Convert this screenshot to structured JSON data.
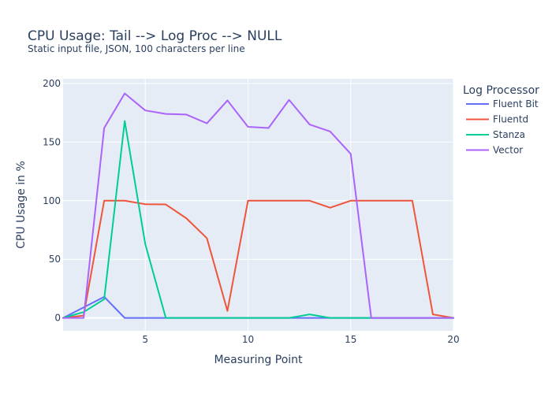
{
  "chart_data": {
    "type": "line",
    "title": "CPU Usage: Tail --> Log Proc --> NULL",
    "subtitle": "Static input file, JSON, 100 characters per line",
    "xlabel": "Measuring Point",
    "ylabel": "CPU Usage in %",
    "xlim": [
      1,
      20
    ],
    "ylim": [
      -11,
      204
    ],
    "x_ticks": [
      5,
      10,
      15,
      20
    ],
    "y_ticks": [
      0,
      50,
      100,
      150,
      200
    ],
    "grid": true,
    "legend_title": "Log Processor",
    "legend_position": "top-right",
    "x": [
      1,
      2,
      3,
      4,
      5,
      6,
      7,
      8,
      9,
      10,
      11,
      12,
      13,
      14,
      15,
      16,
      17,
      18,
      19,
      20
    ],
    "series": [
      {
        "name": "Fluent Bit",
        "color": "#636efa",
        "values": [
          0,
          9,
          18,
          0,
          0,
          0,
          0,
          0,
          0,
          0,
          0,
          0,
          0,
          0,
          0,
          0,
          0,
          0,
          0,
          0
        ]
      },
      {
        "name": "Fluentd",
        "color": "#ef553b",
        "values": [
          0,
          2,
          100,
          100,
          97,
          96.8,
          85,
          68,
          6,
          100,
          100,
          100,
          100,
          94,
          100,
          100,
          100,
          100,
          3,
          0
        ]
      },
      {
        "name": "Stanza",
        "color": "#00cc96",
        "values": [
          0,
          5,
          16,
          168,
          63,
          0,
          0,
          0,
          0,
          0,
          0,
          0,
          3,
          0,
          0,
          0,
          0,
          0,
          0,
          0
        ]
      },
      {
        "name": "Vector",
        "color": "#ab63fa",
        "values": [
          0,
          0,
          162,
          191.5,
          177,
          174,
          173.5,
          166,
          185.5,
          163,
          162,
          186,
          165,
          159,
          140,
          0,
          0,
          0,
          0,
          0
        ]
      }
    ]
  }
}
